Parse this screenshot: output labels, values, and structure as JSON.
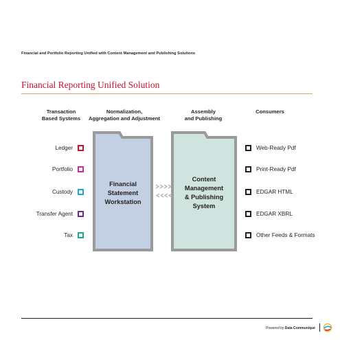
{
  "header": {
    "text": "Financial and Portfolio Reporting Unified with Content Management and Publishing Solutions"
  },
  "title": "Financial Reporting Unified Solution",
  "columns": [
    {
      "line1": "Transaction",
      "line2": "Based Systems"
    },
    {
      "line1": "Normalization,",
      "line2": "Aggregation and Adjustment"
    },
    {
      "line1": "Assembly",
      "line2": "and Publishing"
    },
    {
      "line1": "Consumers",
      "line2": ""
    }
  ],
  "sources": [
    {
      "label": "Ledger",
      "color": "#c8102e"
    },
    {
      "label": "Portfolio",
      "color": "#c72c98"
    },
    {
      "label": "Custody",
      "color": "#1fa3d6"
    },
    {
      "label": "Transfer Agent",
      "color": "#6d2c83"
    },
    {
      "label": "Tax",
      "color": "#1aa88f"
    }
  ],
  "workstation": {
    "line1": "Financial",
    "line2": "Statement",
    "line3": "Workstation",
    "fill": "#c3d0e4"
  },
  "publishing": {
    "line1": "Content",
    "line2": "Management",
    "line3": "& Publishing",
    "line4": "System",
    "fill": "#cfe3df"
  },
  "consumers": [
    {
      "label": "Web-Ready Pdf"
    },
    {
      "label": "Print-Ready Pdf"
    },
    {
      "label": "EDGAR HTML"
    },
    {
      "label": "EDGAR XBRL"
    },
    {
      "label": "Other Feeds & Formats"
    }
  ],
  "footer": {
    "powered_by": "Powered by",
    "brand": "Data Communiqué"
  },
  "colors": {
    "accent_red": "#c8102e",
    "rule_orange": "#e0a464",
    "box_border": "#9a9a9a",
    "consumer_icon": "#231f20"
  }
}
